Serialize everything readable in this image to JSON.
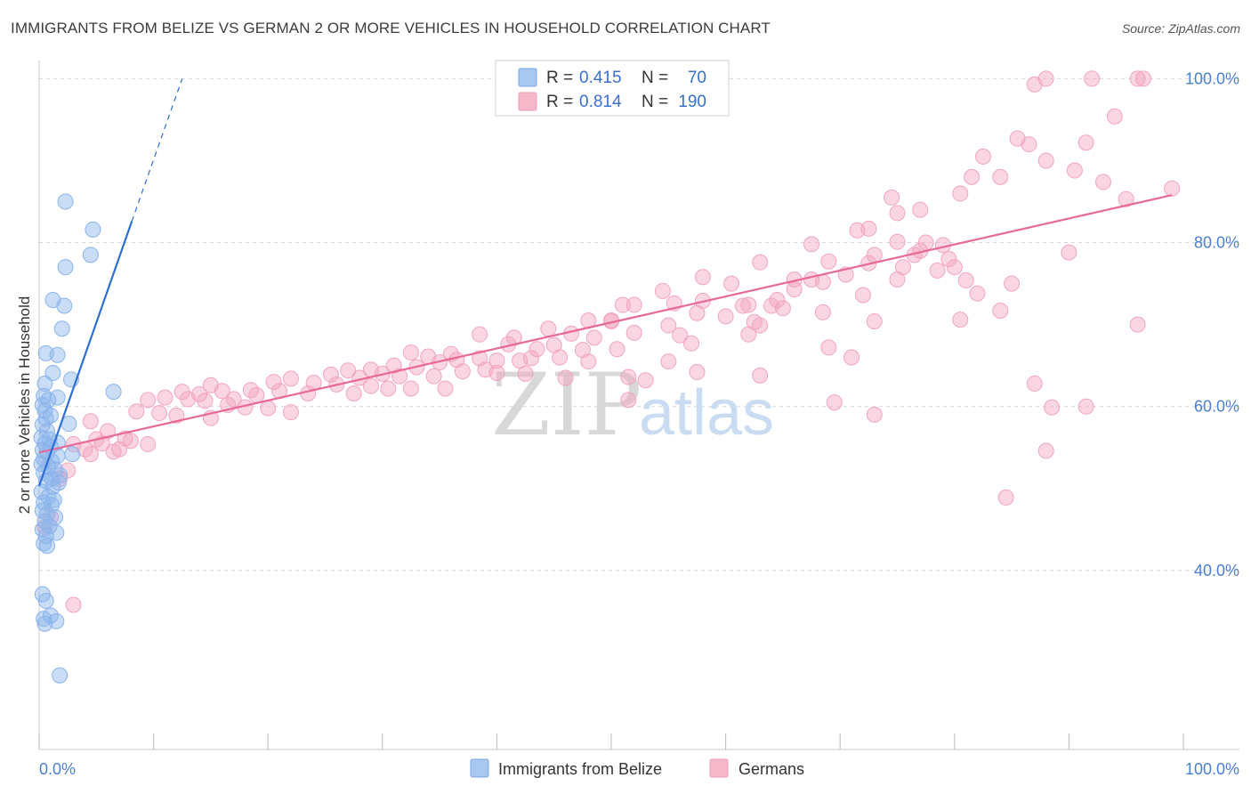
{
  "title": "IMMIGRANTS FROM BELIZE VS GERMAN 2 OR MORE VEHICLES IN HOUSEHOLD CORRELATION CHART",
  "source": "Source: ZipAtlas.com",
  "watermark": {
    "zip": "ZIP",
    "atlas": "atlas"
  },
  "legend_top": {
    "r_label": "R =",
    "n_label": "N =",
    "rows": [
      {
        "r": "0.415",
        "n": "70",
        "color": "#a8c8f0"
      },
      {
        "r": "0.814",
        "n": "190",
        "color": "#f5b8cb"
      }
    ]
  },
  "legend_bottom": [
    {
      "label": "Immigrants from Belize",
      "color": "#a8c8f0"
    },
    {
      "label": "Germans",
      "color": "#f5b8cb"
    }
  ],
  "colors": {
    "blue_point": "#8ab4ec",
    "blue_line": "#2d6fd4",
    "pink_point": "#f2a5bf",
    "pink_line": "#e8689a",
    "grid": "#d8d8d8",
    "tick_label": "#4a7fd4"
  },
  "chart_data": {
    "type": "scatter",
    "title": "IMMIGRANTS FROM BELIZE VS GERMAN 2 OR MORE VEHICLES IN HOUSEHOLD CORRELATION CHART",
    "xlabel": "",
    "ylabel": "2 or more Vehicles in Household",
    "xlim": [
      0,
      100
    ],
    "ylim": [
      20,
      102
    ],
    "x_tick_labels": [
      {
        "value": 0,
        "label": "0.0%"
      },
      {
        "value": 100,
        "label": "100.0%"
      }
    ],
    "y_tick_labels": [
      {
        "value": 40,
        "label": "40.0%"
      },
      {
        "value": 60,
        "label": "60.0%"
      },
      {
        "value": 80,
        "label": "80.0%"
      },
      {
        "value": 100,
        "label": "100.0%"
      }
    ],
    "grid": true,
    "legend": "top-center",
    "series": [
      {
        "name": "Immigrants from Belize",
        "r": 0.415,
        "n": 70,
        "trend": {
          "x": [
            0,
            8.1
          ],
          "y": [
            50.3,
            82.6
          ]
        },
        "trend_extension": {
          "x": [
            8.1,
            12.5
          ],
          "y": [
            82.6,
            100
          ]
        },
        "points": [
          [
            2.3,
            85.0
          ],
          [
            4.7,
            81.6
          ],
          [
            4.5,
            78.5
          ],
          [
            2.3,
            77.0
          ],
          [
            1.2,
            73.0
          ],
          [
            2.2,
            72.3
          ],
          [
            2.0,
            69.5
          ],
          [
            1.6,
            66.3
          ],
          [
            0.6,
            66.5
          ],
          [
            1.2,
            64.1
          ],
          [
            2.8,
            63.3
          ],
          [
            0.5,
            62.8
          ],
          [
            6.5,
            61.8
          ],
          [
            0.4,
            61.3
          ],
          [
            1.6,
            61.1
          ],
          [
            0.8,
            60.8
          ],
          [
            0.3,
            60.2
          ],
          [
            0.5,
            59.5
          ],
          [
            1.0,
            58.9
          ],
          [
            0.6,
            58.5
          ],
          [
            2.6,
            57.9
          ],
          [
            0.3,
            57.8
          ],
          [
            0.7,
            57.0
          ],
          [
            0.2,
            56.2
          ],
          [
            0.9,
            56.0
          ],
          [
            1.6,
            55.6
          ],
          [
            0.5,
            55.5
          ],
          [
            1.0,
            55.1
          ],
          [
            0.3,
            54.7
          ],
          [
            0.7,
            54.4
          ],
          [
            2.9,
            54.2
          ],
          [
            1.6,
            54.0
          ],
          [
            0.4,
            53.6
          ],
          [
            1.1,
            53.3
          ],
          [
            0.2,
            53.0
          ],
          [
            0.8,
            52.7
          ],
          [
            1.4,
            52.3
          ],
          [
            0.4,
            51.9
          ],
          [
            1.8,
            51.6
          ],
          [
            1.1,
            51.2
          ],
          [
            0.6,
            50.9
          ],
          [
            1.7,
            50.7
          ],
          [
            1.2,
            50.2
          ],
          [
            0.2,
            49.6
          ],
          [
            0.8,
            49.0
          ],
          [
            1.3,
            48.6
          ],
          [
            0.4,
            48.3
          ],
          [
            1.1,
            48.0
          ],
          [
            0.3,
            47.3
          ],
          [
            0.7,
            46.9
          ],
          [
            1.4,
            46.5
          ],
          [
            0.5,
            46.0
          ],
          [
            0.9,
            45.4
          ],
          [
            0.3,
            45.0
          ],
          [
            1.5,
            44.6
          ],
          [
            0.6,
            44.2
          ],
          [
            0.4,
            43.3
          ],
          [
            0.7,
            43.0
          ],
          [
            0.3,
            37.1
          ],
          [
            0.6,
            36.3
          ],
          [
            1.0,
            34.5
          ],
          [
            0.4,
            34.1
          ],
          [
            1.5,
            33.8
          ],
          [
            0.5,
            33.5
          ],
          [
            1.8,
            27.2
          ]
        ]
      },
      {
        "name": "Germans",
        "r": 0.814,
        "n": 190,
        "trend": {
          "x": [
            0,
            99
          ],
          "y": [
            54.4,
            85.8
          ]
        },
        "points": [
          [
            88.0,
            100.0
          ],
          [
            92.0,
            100.0
          ],
          [
            96.0,
            100.0
          ],
          [
            96.5,
            100.0
          ],
          [
            87.0,
            99.3
          ],
          [
            94.0,
            95.4
          ],
          [
            85.5,
            92.7
          ],
          [
            86.5,
            92.0
          ],
          [
            91.5,
            92.2
          ],
          [
            82.5,
            90.5
          ],
          [
            88.0,
            90.0
          ],
          [
            90.5,
            88.8
          ],
          [
            81.5,
            88.0
          ],
          [
            84.0,
            88.0
          ],
          [
            93.0,
            87.4
          ],
          [
            99.0,
            86.6
          ],
          [
            74.5,
            85.5
          ],
          [
            95.0,
            85.3
          ],
          [
            80.5,
            86.0
          ],
          [
            77.0,
            84.0
          ],
          [
            75.0,
            83.6
          ],
          [
            71.5,
            81.5
          ],
          [
            72.5,
            81.7
          ],
          [
            67.5,
            79.8
          ],
          [
            75.0,
            80.1
          ],
          [
            79.0,
            79.7
          ],
          [
            77.5,
            80.0
          ],
          [
            77.0,
            79.0
          ],
          [
            73.0,
            78.5
          ],
          [
            76.5,
            78.5
          ],
          [
            90.0,
            78.8
          ],
          [
            75.5,
            77.0
          ],
          [
            80.0,
            77.0
          ],
          [
            69.0,
            77.7
          ],
          [
            63.0,
            77.6
          ],
          [
            70.5,
            76.1
          ],
          [
            78.5,
            76.6
          ],
          [
            66.0,
            75.5
          ],
          [
            67.5,
            75.5
          ],
          [
            58.0,
            75.8
          ],
          [
            68.5,
            75.2
          ],
          [
            60.5,
            75.0
          ],
          [
            81.0,
            75.4
          ],
          [
            75.0,
            75.5
          ],
          [
            54.5,
            74.1
          ],
          [
            66.0,
            74.3
          ],
          [
            72.0,
            73.6
          ],
          [
            82.0,
            73.8
          ],
          [
            64.5,
            73.0
          ],
          [
            58.0,
            72.9
          ],
          [
            62.0,
            72.4
          ],
          [
            61.5,
            72.3
          ],
          [
            51.0,
            72.4
          ],
          [
            52.0,
            72.4
          ],
          [
            55.5,
            72.6
          ],
          [
            65.0,
            72.0
          ],
          [
            57.5,
            71.4
          ],
          [
            60.0,
            71.0
          ],
          [
            62.5,
            70.3
          ],
          [
            63.0,
            69.9
          ],
          [
            73.0,
            70.4
          ],
          [
            84.0,
            71.7
          ],
          [
            80.5,
            70.6
          ],
          [
            48.0,
            70.5
          ],
          [
            50.0,
            70.5
          ],
          [
            62.0,
            68.8
          ],
          [
            44.5,
            69.5
          ],
          [
            48.5,
            68.4
          ],
          [
            56.0,
            68.7
          ],
          [
            46.5,
            68.9
          ],
          [
            52.0,
            69.0
          ],
          [
            38.5,
            68.8
          ],
          [
            41.5,
            68.4
          ],
          [
            41.0,
            67.6
          ],
          [
            43.5,
            67.0
          ],
          [
            45.0,
            67.5
          ],
          [
            57.0,
            67.7
          ],
          [
            69.0,
            67.2
          ],
          [
            47.5,
            66.9
          ],
          [
            50.5,
            67.0
          ],
          [
            32.5,
            66.6
          ],
          [
            36.0,
            66.4
          ],
          [
            42.0,
            65.6
          ],
          [
            43.0,
            65.9
          ],
          [
            45.5,
            66.0
          ],
          [
            48.0,
            65.5
          ],
          [
            55.0,
            65.5
          ],
          [
            71.0,
            66.0
          ],
          [
            34.0,
            66.1
          ],
          [
            38.5,
            65.9
          ],
          [
            40.0,
            65.6
          ],
          [
            35.0,
            65.4
          ],
          [
            36.5,
            65.7
          ],
          [
            31.0,
            65.0
          ],
          [
            33.0,
            64.8
          ],
          [
            37.0,
            64.3
          ],
          [
            39.0,
            64.5
          ],
          [
            40.0,
            64.1
          ],
          [
            42.5,
            64.0
          ],
          [
            27.0,
            64.4
          ],
          [
            29.0,
            64.5
          ],
          [
            30.0,
            64.0
          ],
          [
            25.5,
            63.9
          ],
          [
            31.5,
            63.7
          ],
          [
            34.5,
            63.7
          ],
          [
            28.0,
            63.5
          ],
          [
            22.0,
            63.4
          ],
          [
            24.0,
            62.9
          ],
          [
            20.5,
            63.0
          ],
          [
            26.0,
            62.7
          ],
          [
            29.0,
            62.5
          ],
          [
            30.5,
            62.2
          ],
          [
            32.5,
            62.2
          ],
          [
            35.5,
            62.2
          ],
          [
            15.0,
            62.6
          ],
          [
            16.0,
            61.9
          ],
          [
            18.5,
            62.0
          ],
          [
            21.0,
            61.9
          ],
          [
            23.5,
            61.6
          ],
          [
            27.5,
            61.6
          ],
          [
            12.5,
            61.8
          ],
          [
            14.0,
            61.5
          ],
          [
            17.0,
            60.9
          ],
          [
            19.0,
            61.4
          ],
          [
            11.0,
            61.1
          ],
          [
            13.0,
            60.9
          ],
          [
            14.5,
            60.7
          ],
          [
            9.5,
            60.8
          ],
          [
            16.5,
            60.2
          ],
          [
            18.0,
            59.9
          ],
          [
            20.0,
            59.8
          ],
          [
            22.0,
            59.3
          ],
          [
            8.5,
            59.4
          ],
          [
            10.5,
            59.2
          ],
          [
            12.0,
            58.9
          ],
          [
            15.0,
            58.6
          ],
          [
            4.5,
            58.2
          ],
          [
            6.0,
            57.0
          ],
          [
            7.5,
            56.1
          ],
          [
            5.0,
            56.0
          ],
          [
            8.0,
            55.8
          ],
          [
            9.5,
            55.4
          ],
          [
            3.0,
            55.4
          ],
          [
            4.0,
            54.8
          ],
          [
            6.5,
            54.5
          ],
          [
            5.5,
            55.5
          ],
          [
            4.5,
            54.2
          ],
          [
            7.0,
            54.8
          ],
          [
            2.5,
            52.2
          ],
          [
            1.8,
            51.2
          ],
          [
            1.0,
            46.5
          ],
          [
            0.5,
            45.3
          ],
          [
            3.0,
            35.8
          ],
          [
            69.5,
            60.5
          ],
          [
            87.0,
            62.8
          ],
          [
            91.5,
            60.0
          ],
          [
            88.5,
            59.9
          ],
          [
            73.0,
            59.0
          ],
          [
            84.5,
            48.9
          ],
          [
            88.0,
            54.6
          ],
          [
            51.5,
            60.8
          ],
          [
            63.0,
            63.8
          ],
          [
            53.0,
            63.2
          ],
          [
            46.0,
            63.5
          ],
          [
            57.5,
            64.2
          ],
          [
            51.5,
            63.6
          ],
          [
            55.0,
            69.9
          ],
          [
            72.5,
            77.5
          ],
          [
            79.5,
            78.0
          ],
          [
            68.5,
            71.5
          ],
          [
            64.0,
            72.3
          ],
          [
            50.0,
            70.4
          ],
          [
            85.0,
            75.0
          ],
          [
            96.0,
            70.0
          ]
        ]
      }
    ]
  }
}
